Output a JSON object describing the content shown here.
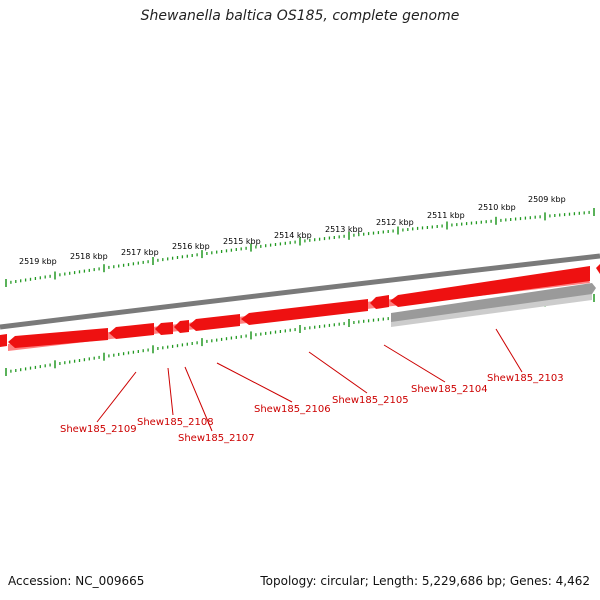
{
  "title": "Shewanella baltica OS185, complete genome",
  "accession": "Accession: NC_009665",
  "summary": "Topology: circular; Length: 5,229,686 bp; Genes: 4,462",
  "colors": {
    "gene_forward": "#ee1111",
    "gene_shadow": "#ff7f7f",
    "backbone": "#7a7a7a",
    "rna_gene": "#aaaaaa",
    "tick": "#229922",
    "label": "#cc0000"
  },
  "scale_labels": [
    "2509 kbp",
    "2510 kbp",
    "2511 kbp",
    "2512 kbp",
    "2513 kbp",
    "2514 kbp",
    "2515 kbp",
    "2516 kbp",
    "2517 kbp",
    "2518 kbp",
    "2519 kbp"
  ],
  "gene_labels": [
    "Shew185_2103",
    "Shew185_2104",
    "Shew185_2105",
    "Shew185_2106",
    "Shew185_2107",
    "Shew185_2108",
    "Shew185_2109"
  ]
}
